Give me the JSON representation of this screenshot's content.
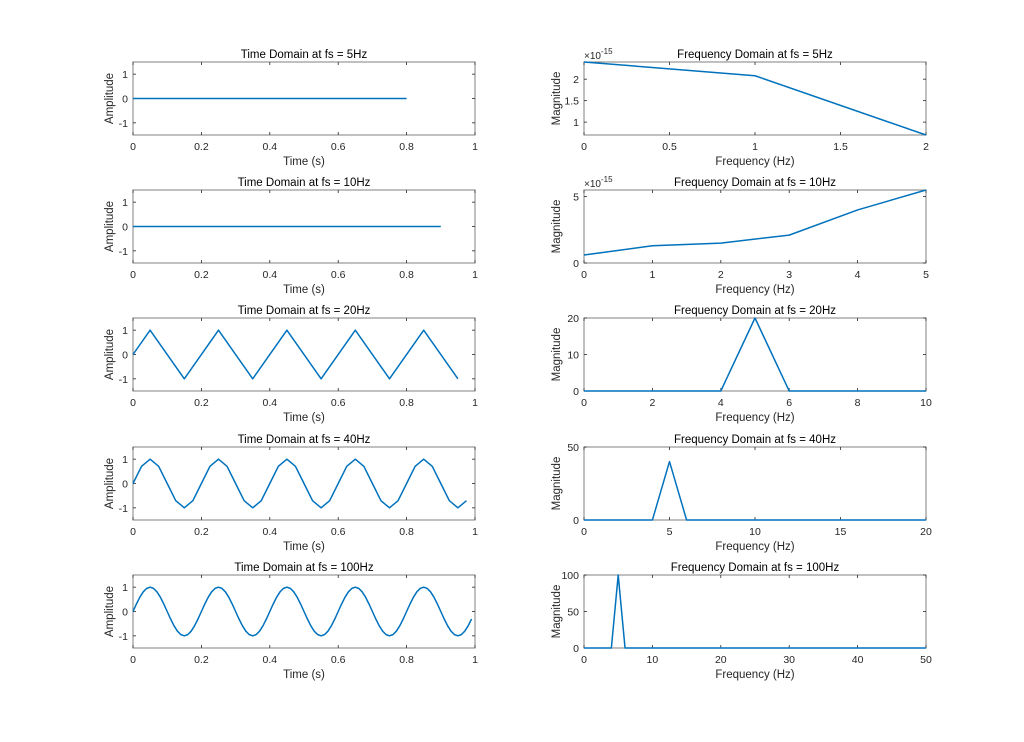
{
  "chart_data": [
    {
      "type": "line",
      "title": "Time Domain at fs = 5Hz",
      "xlabel": "Time (s)",
      "ylabel": "Amplitude",
      "xlim": [
        0,
        1
      ],
      "ylim": [
        -1.5,
        1.5
      ],
      "xticks": [
        "0",
        "0.2",
        "0.4",
        "0.6",
        "0.8",
        "1"
      ],
      "yticks": [
        "-1",
        "0",
        "1"
      ],
      "xtick_values": [
        0,
        0.2,
        0.4,
        0.6,
        0.8,
        1
      ],
      "ytick_values": [
        -1,
        0,
        1
      ],
      "exponent": "",
      "x": [
        0,
        0.2,
        0.4,
        0.6,
        0.8
      ],
      "y": [
        0,
        0,
        0,
        0,
        0
      ]
    },
    {
      "type": "line",
      "title": "Frequency Domain at fs = 5Hz",
      "xlabel": "Frequency (Hz)",
      "ylabel": "Magnitude",
      "xlim": [
        0,
        2
      ],
      "ylim": [
        0.7,
        2.4
      ],
      "xticks": [
        "0",
        "0.5",
        "1",
        "1.5",
        "2"
      ],
      "yticks": [
        "1",
        "1.5",
        "2"
      ],
      "xtick_values": [
        0,
        0.5,
        1,
        1.5,
        2
      ],
      "ytick_values": [
        1,
        1.5,
        2
      ],
      "exponent": "×10",
      "exponent_power": "-15",
      "x": [
        0,
        1,
        2
      ],
      "y": [
        2.4,
        2.08,
        0.7
      ]
    },
    {
      "type": "line",
      "title": "Time Domain at fs = 10Hz",
      "xlabel": "Time (s)",
      "ylabel": "Amplitude",
      "xlim": [
        0,
        1
      ],
      "ylim": [
        -1.5,
        1.5
      ],
      "xticks": [
        "0",
        "0.2",
        "0.4",
        "0.6",
        "0.8",
        "1"
      ],
      "yticks": [
        "-1",
        "0",
        "1"
      ],
      "xtick_values": [
        0,
        0.2,
        0.4,
        0.6,
        0.8,
        1
      ],
      "ytick_values": [
        -1,
        0,
        1
      ],
      "exponent": "",
      "x": [
        0,
        0.1,
        0.2,
        0.3,
        0.4,
        0.5,
        0.6,
        0.7,
        0.8,
        0.9
      ],
      "y": [
        0,
        0,
        0,
        0,
        0,
        0,
        0,
        0,
        0,
        0
      ]
    },
    {
      "type": "line",
      "title": "Frequency Domain at fs = 10Hz",
      "xlabel": "Frequency (Hz)",
      "ylabel": "Magnitude",
      "xlim": [
        0,
        5
      ],
      "ylim": [
        0,
        5.5
      ],
      "xticks": [
        "0",
        "1",
        "2",
        "3",
        "4",
        "5"
      ],
      "yticks": [
        "0",
        "5"
      ],
      "xtick_values": [
        0,
        1,
        2,
        3,
        4,
        5
      ],
      "ytick_values": [
        0,
        5
      ],
      "exponent": "×10",
      "exponent_power": "-15",
      "x": [
        0,
        1,
        2,
        3,
        4,
        5
      ],
      "y": [
        0.6,
        1.3,
        1.5,
        2.1,
        4.0,
        5.5
      ]
    },
    {
      "type": "line",
      "title": "Time Domain at fs = 20Hz",
      "xlabel": "Time (s)",
      "ylabel": "Amplitude",
      "xlim": [
        0,
        1
      ],
      "ylim": [
        -1.5,
        1.5
      ],
      "xticks": [
        "0",
        "0.2",
        "0.4",
        "0.6",
        "0.8",
        "1"
      ],
      "yticks": [
        "-1",
        "0",
        "1"
      ],
      "xtick_values": [
        0,
        0.2,
        0.4,
        0.6,
        0.8,
        1
      ],
      "ytick_values": [
        -1,
        0,
        1
      ],
      "exponent": "",
      "x": [
        0,
        0.05,
        0.15,
        0.25,
        0.35,
        0.45,
        0.55,
        0.65,
        0.75,
        0.85,
        0.95
      ],
      "y": [
        0,
        1,
        -1,
        1,
        -1,
        1,
        -1,
        1,
        -1,
        1,
        -1
      ]
    },
    {
      "type": "line",
      "title": "Frequency Domain at fs = 20Hz",
      "xlabel": "Frequency (Hz)",
      "ylabel": "Magnitude",
      "xlim": [
        0,
        10
      ],
      "ylim": [
        0,
        20
      ],
      "xticks": [
        "0",
        "2",
        "4",
        "6",
        "8",
        "10"
      ],
      "yticks": [
        "0",
        "10",
        "20"
      ],
      "xtick_values": [
        0,
        2,
        4,
        6,
        8,
        10
      ],
      "ytick_values": [
        0,
        10,
        20
      ],
      "exponent": "",
      "x": [
        0,
        1,
        2,
        3,
        4,
        5,
        6,
        7,
        8,
        9,
        10
      ],
      "y": [
        0,
        0,
        0,
        0,
        0,
        20,
        0,
        0,
        0,
        0,
        0
      ]
    },
    {
      "type": "line",
      "title": "Time Domain at fs = 40Hz",
      "xlabel": "Time (s)",
      "ylabel": "Amplitude",
      "xlim": [
        0,
        1
      ],
      "ylim": [
        -1.5,
        1.5
      ],
      "xticks": [
        "0",
        "0.2",
        "0.4",
        "0.6",
        "0.8",
        "1"
      ],
      "yticks": [
        "-1",
        "0",
        "1"
      ],
      "xtick_values": [
        0,
        0.2,
        0.4,
        0.6,
        0.8,
        1
      ],
      "ytick_values": [
        -1,
        0,
        1
      ],
      "exponent": "",
      "x": [
        0,
        0.025,
        0.05,
        0.075,
        0.1,
        0.125,
        0.15,
        0.175,
        0.2,
        0.225,
        0.25,
        0.275,
        0.3,
        0.325,
        0.35,
        0.375,
        0.4,
        0.425,
        0.45,
        0.475,
        0.5,
        0.525,
        0.55,
        0.575,
        0.6,
        0.625,
        0.65,
        0.675,
        0.7,
        0.725,
        0.75,
        0.775,
        0.8,
        0.825,
        0.85,
        0.875,
        0.9,
        0.925,
        0.95,
        0.975
      ],
      "y": [
        0,
        0.707,
        1,
        0.707,
        0,
        -0.707,
        -1,
        -0.707,
        0,
        0.707,
        1,
        0.707,
        0,
        -0.707,
        -1,
        -0.707,
        0,
        0.707,
        1,
        0.707,
        0,
        -0.707,
        -1,
        -0.707,
        0,
        0.707,
        1,
        0.707,
        0,
        -0.707,
        -1,
        -0.707,
        0,
        0.707,
        1,
        0.707,
        0,
        -0.707,
        -1,
        -0.707
      ]
    },
    {
      "type": "line",
      "title": "Frequency Domain at fs = 40Hz",
      "xlabel": "Frequency (Hz)",
      "ylabel": "Magnitude",
      "xlim": [
        0,
        20
      ],
      "ylim": [
        0,
        50
      ],
      "xticks": [
        "0",
        "5",
        "10",
        "15",
        "20"
      ],
      "yticks": [
        "0",
        "50"
      ],
      "xtick_values": [
        0,
        5,
        10,
        15,
        20
      ],
      "ytick_values": [
        0,
        50
      ],
      "exponent": "",
      "x": [
        0,
        1,
        2,
        3,
        4,
        5,
        6,
        7,
        8,
        9,
        10,
        11,
        12,
        13,
        14,
        15,
        16,
        17,
        18,
        19,
        20
      ],
      "y": [
        0,
        0,
        0,
        0,
        0,
        40,
        0,
        0,
        0,
        0,
        0,
        0,
        0,
        0,
        0,
        0,
        0,
        0,
        0,
        0,
        0
      ]
    },
    {
      "type": "line",
      "title": "Time Domain at fs = 100Hz",
      "xlabel": "Time (s)",
      "ylabel": "Amplitude",
      "xlim": [
        0,
        1
      ],
      "ylim": [
        -1.5,
        1.5
      ],
      "xticks": [
        "0",
        "0.2",
        "0.4",
        "0.6",
        "0.8",
        "1"
      ],
      "yticks": [
        "-1",
        "0",
        "1"
      ],
      "xtick_values": [
        0,
        0.2,
        0.4,
        0.6,
        0.8,
        1
      ],
      "ytick_values": [
        -1,
        0,
        1
      ],
      "exponent": "",
      "signal": "sin(2*pi*5*t)",
      "x_range": [
        0,
        0.99
      ],
      "x_step": 0.01
    },
    {
      "type": "line",
      "title": "Frequency Domain at fs = 100Hz",
      "xlabel": "Frequency (Hz)",
      "ylabel": "Magnitude",
      "xlim": [
        0,
        50
      ],
      "ylim": [
        0,
        100
      ],
      "xticks": [
        "0",
        "10",
        "20",
        "30",
        "40",
        "50"
      ],
      "yticks": [
        "0",
        "50",
        "100"
      ],
      "xtick_values": [
        0,
        10,
        20,
        30,
        40,
        50
      ],
      "ytick_values": [
        0,
        50,
        100
      ],
      "exponent": "",
      "x": [
        0,
        4,
        5,
        6,
        50
      ],
      "y": [
        0,
        0,
        100,
        0,
        0
      ]
    }
  ],
  "colors": {
    "line": "#0072BD",
    "axes": "#262626",
    "box": "#808080"
  }
}
